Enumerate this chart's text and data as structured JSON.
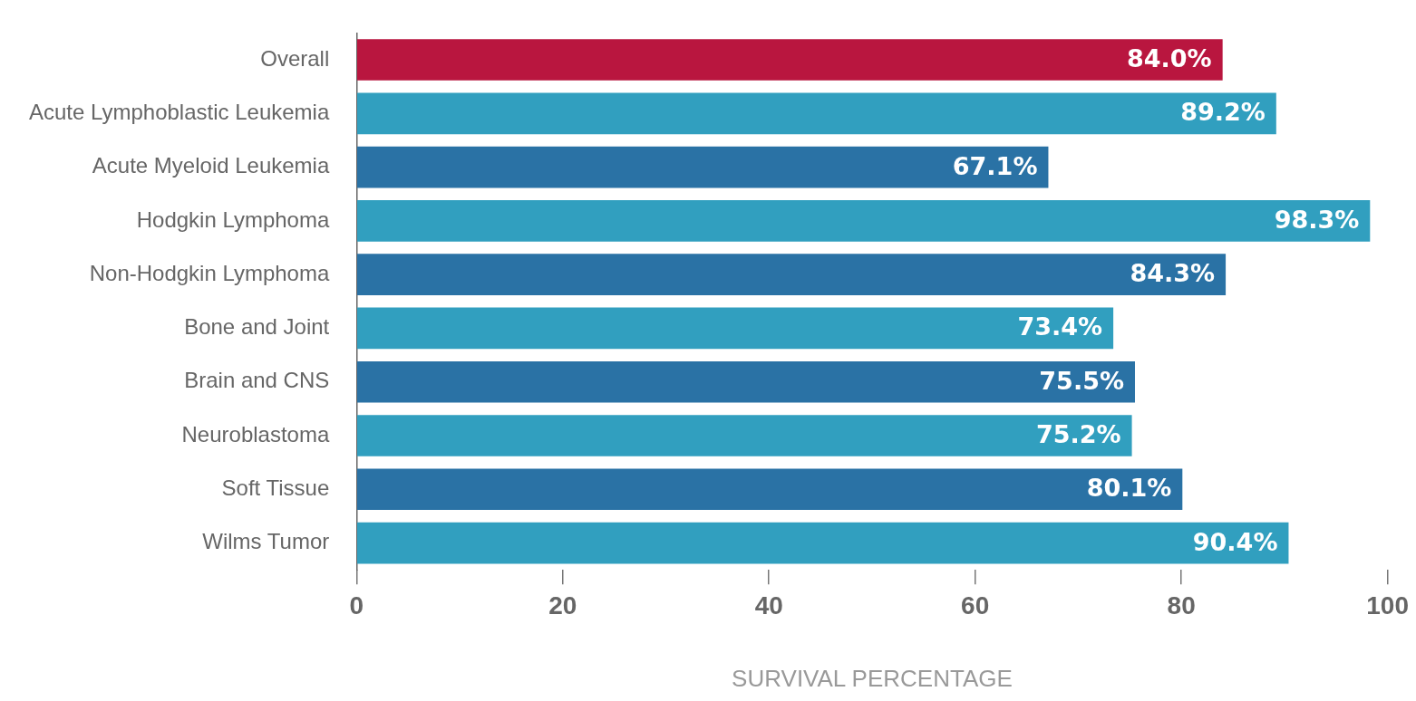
{
  "chart_data": {
    "type": "bar",
    "orientation": "horizontal",
    "xlabel": "SURVIVAL PERCENTAGE",
    "categories": [
      "Overall",
      "Acute Lymphoblastic Leukemia",
      "Acute Myeloid Leukemia",
      "Hodgkin Lymphoma",
      "Non-Hodgkin Lymphoma",
      "Bone and Joint",
      "Brain and CNS",
      "Neuroblastoma",
      "Soft Tissue",
      "Wilms Tumor"
    ],
    "values": [
      84.0,
      89.2,
      67.1,
      98.3,
      84.3,
      73.4,
      75.5,
      75.2,
      80.1,
      90.4
    ],
    "colors": [
      "#b9163f",
      "#319fbf",
      "#2a72a5",
      "#319fbf",
      "#2a72a5",
      "#319fbf",
      "#2a72a5",
      "#319fbf",
      "#2a72a5",
      "#319fbf"
    ],
    "value_labels": [
      "84.0%",
      "89.2%",
      "67.1%",
      "98.3%",
      "84.3%",
      "73.4%",
      "75.5%",
      "75.2%",
      "80.1%",
      "90.4%"
    ],
    "xlim": [
      0,
      100
    ],
    "xticks": [
      0,
      20,
      40,
      60,
      80,
      100
    ],
    "grid": false,
    "legend": false
  }
}
